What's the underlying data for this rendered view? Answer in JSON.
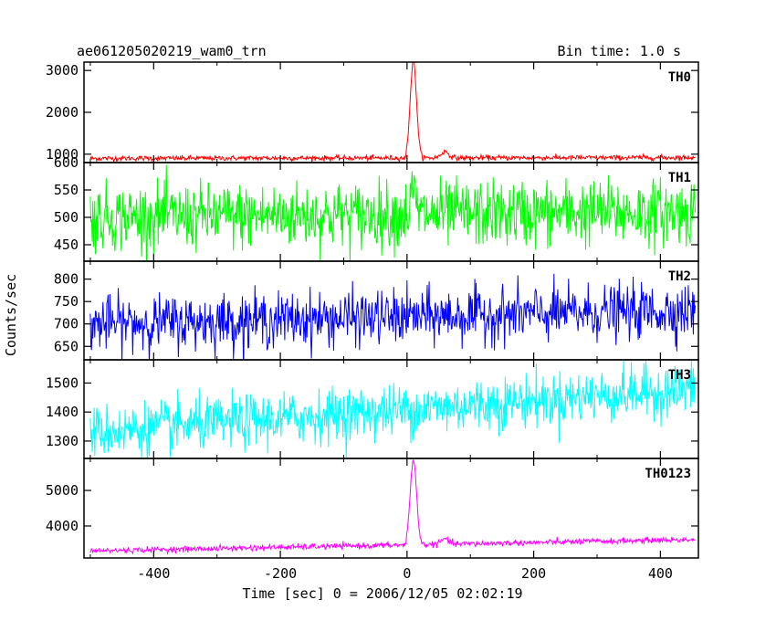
{
  "header": {
    "title": "ae061205020219_wam0_trn",
    "bin_time": "Bin time: 1.0 s"
  },
  "chart_data": {
    "type": "line",
    "xlabel": "Time [sec] 0 = 2006/12/05 02:02:19",
    "ylabel": "Counts/sec",
    "xlim": [
      -510,
      460
    ],
    "x_ticks": [
      -400,
      -200,
      0,
      200,
      400
    ],
    "panels": [
      {
        "name": "TH0",
        "color": "#ff0000",
        "ylim": [
          800,
          3200
        ],
        "yticks": [
          1000,
          2000,
          3000
        ],
        "baseline": 900,
        "baseline_end": 920,
        "noise": 30,
        "peak": {
          "x": 10,
          "amp": 2300,
          "width": 5
        },
        "bump": {
          "x": 60,
          "amp": 150,
          "width": 6
        }
      },
      {
        "name": "TH1",
        "color": "#00ff00",
        "ylim": [
          420,
          600
        ],
        "yticks": [
          450,
          500,
          550,
          600
        ],
        "baseline": 500,
        "baseline_end": 510,
        "noise": 30,
        "peak": {
          "x": 10,
          "amp": 40,
          "width": 4
        }
      },
      {
        "name": "TH2",
        "color": "#0000ff",
        "ylim": [
          620,
          840
        ],
        "yticks": [
          650,
          700,
          750,
          800
        ],
        "baseline": 700,
        "baseline_end": 730,
        "noise": 30
      },
      {
        "name": "TH3",
        "color": "#00ffff",
        "ylim": [
          1240,
          1580
        ],
        "yticks": [
          1300,
          1400,
          1500
        ],
        "baseline": 1330,
        "baseline_end": 1480,
        "noise": 45
      },
      {
        "name": "TH0123",
        "color": "#ff00ff",
        "ylim": [
          3100,
          5900
        ],
        "yticks": [
          4000,
          5000
        ],
        "baseline": 3300,
        "baseline_end": 3620,
        "noise": 40,
        "peak": {
          "x": 10,
          "amp": 2400,
          "width": 5
        },
        "bump": {
          "x": 60,
          "amp": 150,
          "width": 6
        }
      }
    ]
  }
}
